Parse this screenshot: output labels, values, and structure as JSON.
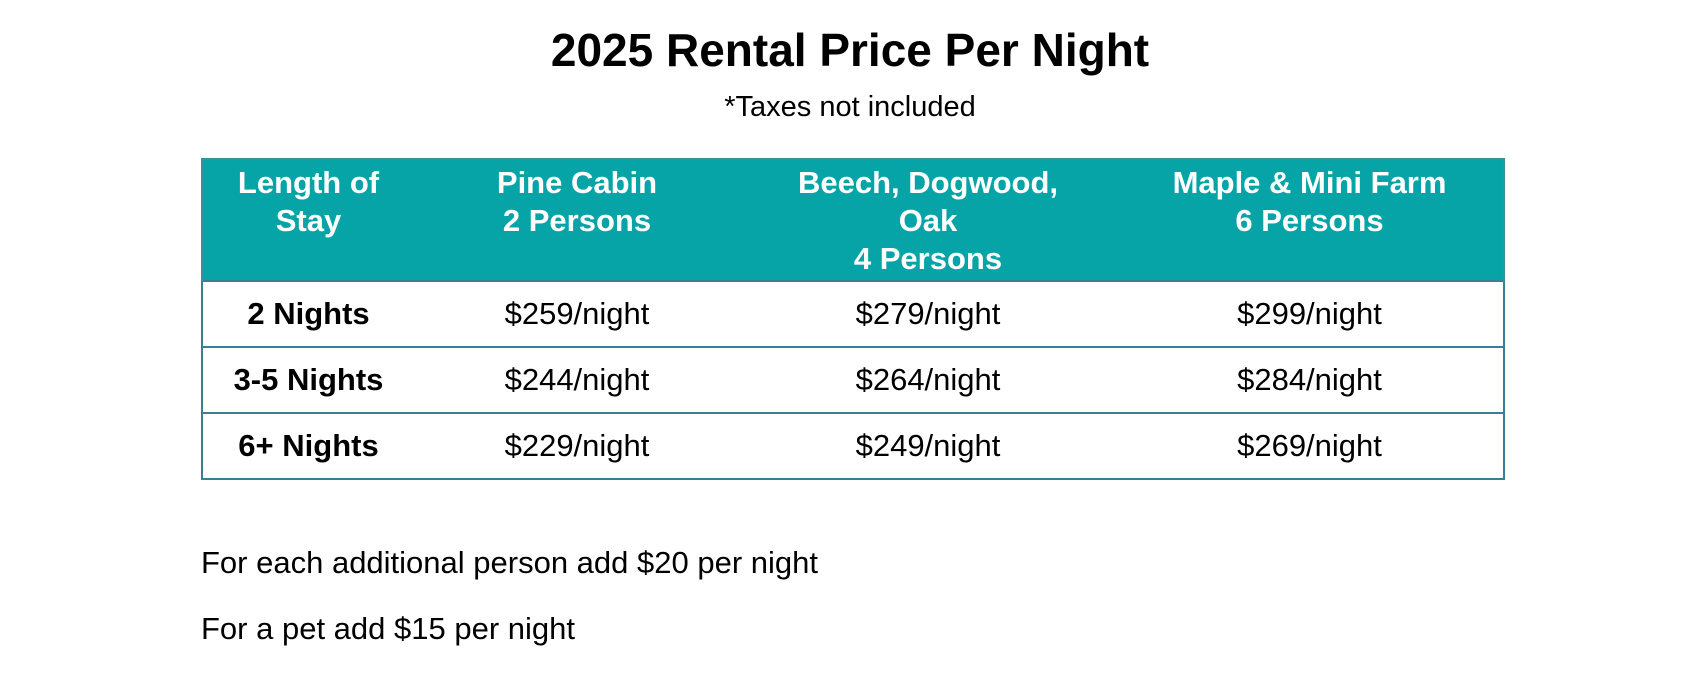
{
  "title": "2025 Rental Price Per Night",
  "subtitle": "*Taxes not included",
  "table": {
    "headers": [
      {
        "lines": [
          "Length of",
          "Stay"
        ]
      },
      {
        "lines": [
          "Pine Cabin",
          "2 Persons"
        ]
      },
      {
        "lines": [
          "Beech, Dogwood,",
          "Oak",
          "4 Persons"
        ]
      },
      {
        "lines": [
          "Maple & Mini Farm",
          "6 Persons"
        ]
      }
    ],
    "rows": [
      {
        "stay": "2 Nights",
        "pine": "$259/night",
        "beech": "$279/night",
        "maple": "$299/night"
      },
      {
        "stay": "3-5 Nights",
        "pine": "$244/night",
        "beech": "$264/night",
        "maple": "$284/night"
      },
      {
        "stay": "6+ Nights",
        "pine": "$229/night",
        "beech": "$249/night",
        "maple": "$269/night"
      }
    ]
  },
  "notes": [
    "For each additional person add $20 per night",
    "For a pet add $15 per night"
  ],
  "colors": {
    "header_background": "#07a4a7",
    "header_text": "#ffffff",
    "border": "#3a7f95"
  }
}
